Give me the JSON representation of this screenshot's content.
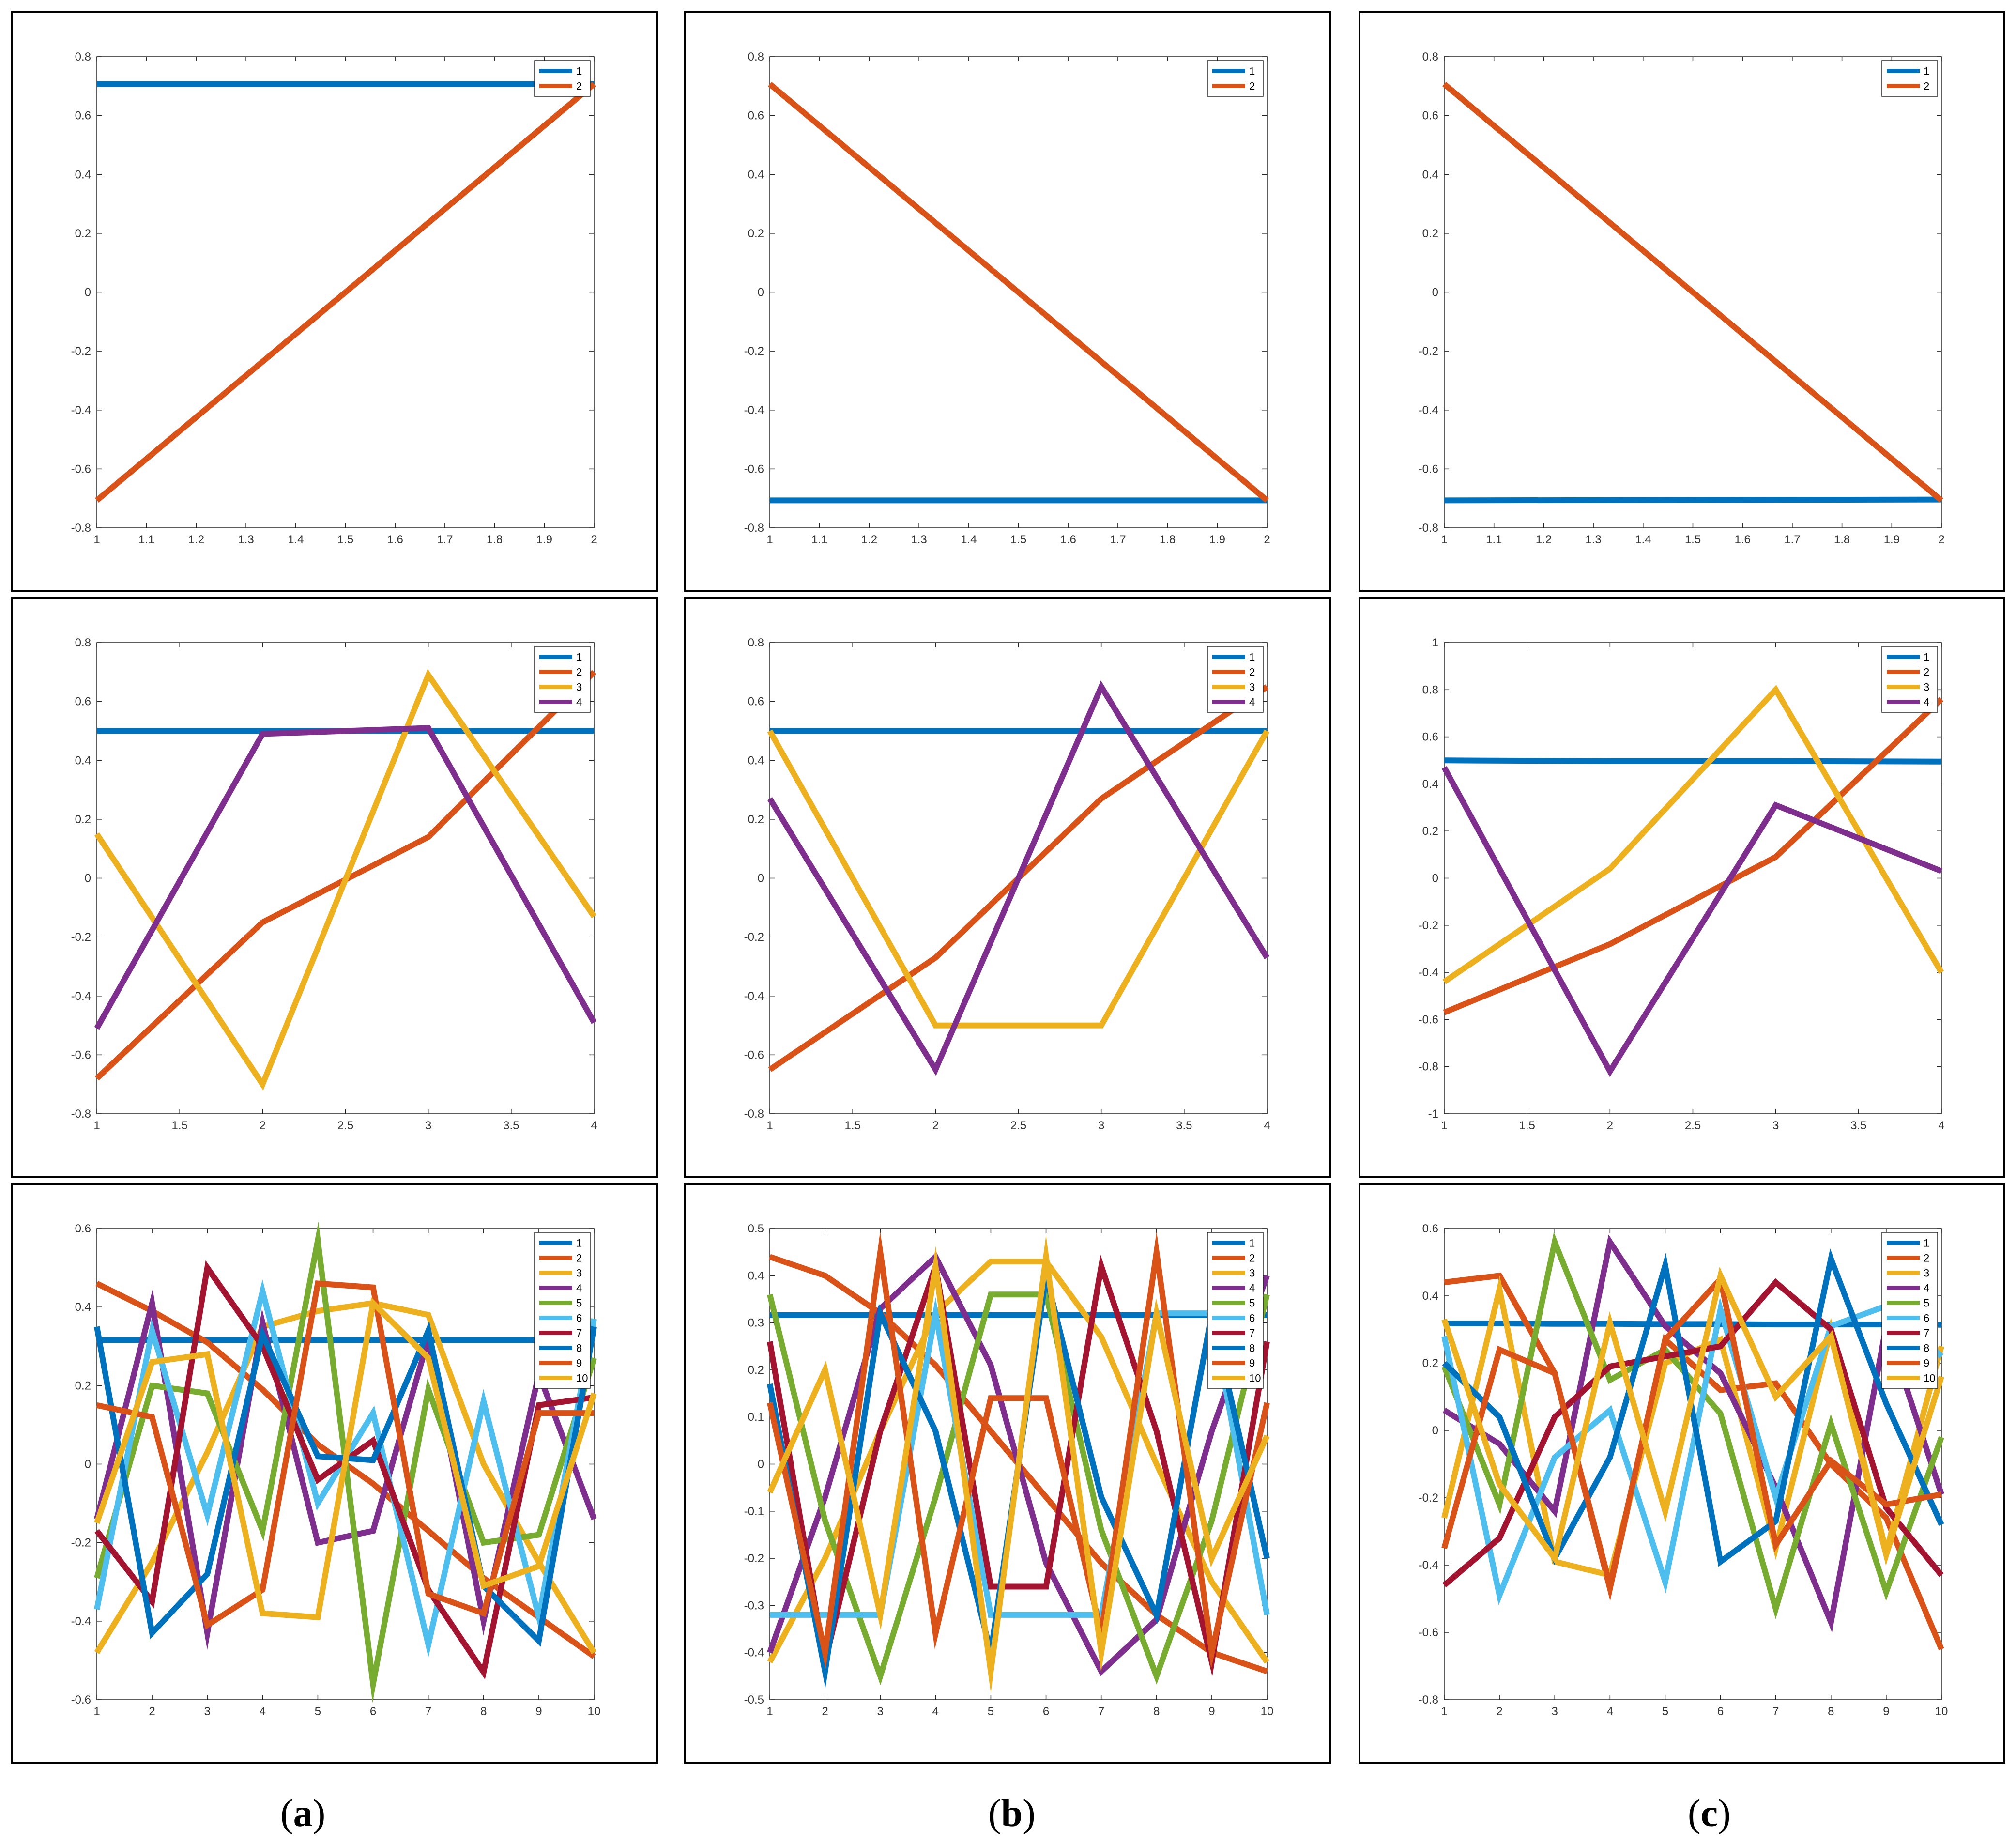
{
  "figure": {
    "columns": [
      {
        "label_open": "(",
        "label_letter": "a",
        "label_close": ")"
      },
      {
        "label_open": "(",
        "label_letter": "b",
        "label_close": ")"
      },
      {
        "label_open": "(",
        "label_letter": "c",
        "label_close": ")"
      }
    ],
    "series_colors": [
      "#0072BD",
      "#D95319",
      "#EDB120",
      "#7E2F8E",
      "#77AC30",
      "#4DBEEE",
      "#A2142F",
      "#0072BD",
      "#D95319",
      "#EDB120"
    ]
  },
  "chart_data": [
    {
      "id": "a1",
      "type": "line",
      "title": "",
      "xlabel": "",
      "ylabel": "",
      "x": [
        1,
        2
      ],
      "xlim": [
        1,
        2
      ],
      "ylim": [
        -0.8,
        0.8
      ],
      "xticks": [
        1,
        1.1,
        1.2,
        1.3,
        1.4,
        1.5,
        1.6,
        1.7,
        1.8,
        1.9,
        2
      ],
      "xtick_labels": [
        "1",
        "1.1",
        "1.2",
        "1.3",
        "1.4",
        "1.5",
        "1.6",
        "1.7",
        "1.8",
        "1.9",
        "2"
      ],
      "yticks": [
        -0.8,
        -0.6,
        -0.4,
        -0.2,
        0,
        0.2,
        0.4,
        0.6,
        0.8
      ],
      "ytick_labels": [
        "-0.8",
        "-0.6",
        "-0.4",
        "-0.2",
        "0",
        "0.2",
        "0.4",
        "0.6",
        "0.8"
      ],
      "legend": "top-right",
      "series": [
        {
          "name": "1",
          "values": [
            0.707,
            0.707
          ]
        },
        {
          "name": "2",
          "values": [
            -0.707,
            0.707
          ]
        }
      ]
    },
    {
      "id": "b1",
      "type": "line",
      "title": "",
      "xlabel": "",
      "ylabel": "",
      "x": [
        1,
        2
      ],
      "xlim": [
        1,
        2
      ],
      "ylim": [
        -0.8,
        0.8
      ],
      "xticks": [
        1,
        1.1,
        1.2,
        1.3,
        1.4,
        1.5,
        1.6,
        1.7,
        1.8,
        1.9,
        2
      ],
      "xtick_labels": [
        "1",
        "1.1",
        "1.2",
        "1.3",
        "1.4",
        "1.5",
        "1.6",
        "1.7",
        "1.8",
        "1.9",
        "2"
      ],
      "yticks": [
        -0.8,
        -0.6,
        -0.4,
        -0.2,
        0,
        0.2,
        0.4,
        0.6,
        0.8
      ],
      "ytick_labels": [
        "-0.8",
        "-0.6",
        "-0.4",
        "-0.2",
        "0",
        "0.2",
        "0.4",
        "0.6",
        "0.8"
      ],
      "legend": "top-right",
      "series": [
        {
          "name": "1",
          "values": [
            -0.707,
            -0.707
          ]
        },
        {
          "name": "2",
          "values": [
            0.707,
            -0.707
          ]
        }
      ]
    },
    {
      "id": "c1",
      "type": "line",
      "title": "",
      "xlabel": "",
      "ylabel": "",
      "x": [
        1,
        2
      ],
      "xlim": [
        1,
        2
      ],
      "ylim": [
        -0.8,
        0.8
      ],
      "xticks": [
        1,
        1.1,
        1.2,
        1.3,
        1.4,
        1.5,
        1.6,
        1.7,
        1.8,
        1.9,
        2
      ],
      "xtick_labels": [
        "1",
        "1.1",
        "1.2",
        "1.3",
        "1.4",
        "1.5",
        "1.6",
        "1.7",
        "1.8",
        "1.9",
        "2"
      ],
      "yticks": [
        -0.8,
        -0.6,
        -0.4,
        -0.2,
        0,
        0.2,
        0.4,
        0.6,
        0.8
      ],
      "ytick_labels": [
        "-0.8",
        "-0.6",
        "-0.4",
        "-0.2",
        "0",
        "0.2",
        "0.4",
        "0.6",
        "0.8"
      ],
      "legend": "top-right",
      "series": [
        {
          "name": "1",
          "values": [
            -0.707,
            -0.704
          ]
        },
        {
          "name": "2",
          "values": [
            0.707,
            -0.707
          ]
        }
      ]
    },
    {
      "id": "a2",
      "type": "line",
      "title": "",
      "xlabel": "",
      "ylabel": "",
      "x": [
        1,
        2,
        3,
        4
      ],
      "xlim": [
        1,
        4
      ],
      "ylim": [
        -0.8,
        0.8
      ],
      "xticks": [
        1,
        1.5,
        2,
        2.5,
        3,
        3.5,
        4
      ],
      "xtick_labels": [
        "1",
        "1.5",
        "2",
        "2.5",
        "3",
        "3.5",
        "4"
      ],
      "yticks": [
        -0.8,
        -0.6,
        -0.4,
        -0.2,
        0,
        0.2,
        0.4,
        0.6,
        0.8
      ],
      "ytick_labels": [
        "-0.8",
        "-0.6",
        "-0.4",
        "-0.2",
        "0",
        "0.2",
        "0.4",
        "0.6",
        "0.8"
      ],
      "legend": "top-right",
      "series": [
        {
          "name": "1",
          "values": [
            0.5,
            0.5,
            0.5,
            0.5
          ]
        },
        {
          "name": "2",
          "values": [
            -0.68,
            -0.15,
            0.14,
            0.7
          ]
        },
        {
          "name": "3",
          "values": [
            0.15,
            -0.7,
            0.69,
            -0.13
          ]
        },
        {
          "name": "4",
          "values": [
            -0.51,
            0.49,
            0.51,
            -0.49
          ]
        }
      ]
    },
    {
      "id": "b2",
      "type": "line",
      "title": "",
      "xlabel": "",
      "ylabel": "",
      "x": [
        1,
        2,
        3,
        4
      ],
      "xlim": [
        1,
        4
      ],
      "ylim": [
        -0.8,
        0.8
      ],
      "xticks": [
        1,
        1.5,
        2,
        2.5,
        3,
        3.5,
        4
      ],
      "xtick_labels": [
        "1",
        "1.5",
        "2",
        "2.5",
        "3",
        "3.5",
        "4"
      ],
      "yticks": [
        -0.8,
        -0.6,
        -0.4,
        -0.2,
        0,
        0.2,
        0.4,
        0.6,
        0.8
      ],
      "ytick_labels": [
        "-0.8",
        "-0.6",
        "-0.4",
        "-0.2",
        "0",
        "0.2",
        "0.4",
        "0.6",
        "0.8"
      ],
      "legend": "top-right",
      "series": [
        {
          "name": "1",
          "values": [
            0.5,
            0.5,
            0.5,
            0.5
          ]
        },
        {
          "name": "2",
          "values": [
            -0.65,
            -0.27,
            0.27,
            0.65
          ]
        },
        {
          "name": "3",
          "values": [
            0.5,
            -0.5,
            -0.5,
            0.5
          ]
        },
        {
          "name": "4",
          "values": [
            0.27,
            -0.65,
            0.65,
            -0.27
          ]
        }
      ]
    },
    {
      "id": "c2",
      "type": "line",
      "title": "",
      "xlabel": "",
      "ylabel": "",
      "x": [
        1,
        2,
        3,
        4
      ],
      "xlim": [
        1,
        4
      ],
      "ylim": [
        -1,
        1
      ],
      "xticks": [
        1,
        1.5,
        2,
        2.5,
        3,
        3.5,
        4
      ],
      "xtick_labels": [
        "1",
        "1.5",
        "2",
        "2.5",
        "3",
        "3.5",
        "4"
      ],
      "yticks": [
        -1,
        -0.8,
        -0.6,
        -0.4,
        -0.2,
        0,
        0.2,
        0.4,
        0.6,
        0.8,
        1
      ],
      "ytick_labels": [
        "-1",
        "-0.8",
        "-0.6",
        "-0.4",
        "-0.2",
        "0",
        "0.2",
        "0.4",
        "0.6",
        "0.8",
        "1"
      ],
      "legend": "top-right",
      "series": [
        {
          "name": "1",
          "values": [
            0.5,
            0.497,
            0.497,
            0.495
          ]
        },
        {
          "name": "2",
          "values": [
            -0.57,
            -0.28,
            0.09,
            0.76
          ]
        },
        {
          "name": "3",
          "values": [
            -0.44,
            0.04,
            0.8,
            -0.4
          ]
        },
        {
          "name": "4",
          "values": [
            0.47,
            -0.82,
            0.31,
            0.03
          ]
        }
      ]
    },
    {
      "id": "a3",
      "type": "line",
      "title": "",
      "xlabel": "",
      "ylabel": "",
      "x": [
        1,
        2,
        3,
        4,
        5,
        6,
        7,
        8,
        9,
        10
      ],
      "xlim": [
        1,
        10
      ],
      "ylim": [
        -0.6,
        0.6
      ],
      "xticks": [
        1,
        2,
        3,
        4,
        5,
        6,
        7,
        8,
        9,
        10
      ],
      "xtick_labels": [
        "1",
        "2",
        "3",
        "4",
        "5",
        "6",
        "7",
        "8",
        "9",
        "10"
      ],
      "yticks": [
        -0.6,
        -0.4,
        -0.2,
        0,
        0.2,
        0.4,
        0.6
      ],
      "ytick_labels": [
        "-0.6",
        "-0.4",
        "-0.2",
        "0",
        "0.2",
        "0.4",
        "0.6"
      ],
      "legend": "top-right",
      "series": [
        {
          "name": "1",
          "values": [
            0.316,
            0.316,
            0.316,
            0.316,
            0.316,
            0.316,
            0.316,
            0.316,
            0.316,
            0.316
          ]
        },
        {
          "name": "2",
          "values": [
            0.46,
            0.39,
            0.31,
            0.19,
            0.05,
            -0.05,
            -0.17,
            -0.29,
            -0.39,
            -0.49
          ]
        },
        {
          "name": "3",
          "values": [
            -0.48,
            -0.25,
            0.03,
            0.35,
            0.39,
            0.41,
            0.38,
            0.0,
            -0.25,
            -0.48
          ]
        },
        {
          "name": "4",
          "values": [
            -0.14,
            0.41,
            -0.43,
            0.36,
            -0.2,
            -0.17,
            0.32,
            -0.4,
            0.23,
            -0.14
          ]
        },
        {
          "name": "5",
          "values": [
            -0.29,
            0.2,
            0.18,
            -0.17,
            0.57,
            -0.56,
            0.19,
            -0.2,
            -0.18,
            0.27
          ]
        },
        {
          "name": "6",
          "values": [
            -0.37,
            0.34,
            -0.13,
            0.44,
            -0.1,
            0.13,
            -0.46,
            0.16,
            -0.39,
            0.37
          ]
        },
        {
          "name": "7",
          "values": [
            -0.17,
            -0.35,
            0.5,
            0.3,
            -0.04,
            0.06,
            -0.32,
            -0.53,
            0.15,
            0.17
          ]
        },
        {
          "name": "8",
          "values": [
            0.35,
            -0.43,
            -0.28,
            0.33,
            0.02,
            0.01,
            0.34,
            -0.31,
            -0.45,
            0.35
          ]
        },
        {
          "name": "9",
          "values": [
            0.15,
            0.12,
            -0.41,
            -0.32,
            0.46,
            0.45,
            -0.33,
            -0.38,
            0.13,
            0.13
          ]
        },
        {
          "name": "10",
          "values": [
            -0.15,
            0.26,
            0.28,
            -0.38,
            -0.39,
            0.41,
            0.27,
            -0.31,
            -0.26,
            0.18
          ]
        }
      ]
    },
    {
      "id": "b3",
      "type": "line",
      "title": "",
      "xlabel": "",
      "ylabel": "",
      "x": [
        1,
        2,
        3,
        4,
        5,
        6,
        7,
        8,
        9,
        10
      ],
      "xlim": [
        1,
        10
      ],
      "ylim": [
        -0.5,
        0.5
      ],
      "xticks": [
        1,
        2,
        3,
        4,
        5,
        6,
        7,
        8,
        9,
        10
      ],
      "xtick_labels": [
        "1",
        "2",
        "3",
        "4",
        "5",
        "6",
        "7",
        "8",
        "9",
        "10"
      ],
      "yticks": [
        -0.5,
        -0.4,
        -0.3,
        -0.2,
        -0.1,
        0,
        0.1,
        0.2,
        0.3,
        0.4,
        0.5
      ],
      "ytick_labels": [
        "-0.5",
        "-0.4",
        "-0.3",
        "-0.2",
        "-0.1",
        "0",
        "0.1",
        "0.2",
        "0.3",
        "0.4",
        "0.5"
      ],
      "legend": "top-right",
      "series": [
        {
          "name": "1",
          "values": [
            0.316,
            0.316,
            0.316,
            0.316,
            0.316,
            0.316,
            0.316,
            0.316,
            0.316,
            0.316
          ]
        },
        {
          "name": "2",
          "values": [
            0.44,
            0.4,
            0.32,
            0.21,
            0.07,
            -0.07,
            -0.21,
            -0.32,
            -0.4,
            -0.44
          ]
        },
        {
          "name": "3",
          "values": [
            -0.42,
            -0.2,
            0.07,
            0.32,
            0.43,
            0.43,
            0.27,
            0.0,
            -0.25,
            -0.42
          ]
        },
        {
          "name": "4",
          "values": [
            -0.4,
            -0.07,
            0.33,
            0.44,
            0.21,
            -0.21,
            -0.44,
            -0.33,
            0.07,
            0.4
          ]
        },
        {
          "name": "5",
          "values": [
            0.36,
            -0.12,
            -0.45,
            -0.07,
            0.36,
            0.36,
            -0.14,
            -0.45,
            -0.12,
            0.36
          ]
        },
        {
          "name": "6",
          "values": [
            -0.32,
            -0.32,
            -0.32,
            0.32,
            -0.32,
            -0.32,
            -0.32,
            0.32,
            0.32,
            -0.32
          ]
        },
        {
          "name": "7",
          "values": [
            0.26,
            -0.42,
            0.07,
            0.42,
            -0.26,
            -0.26,
            0.42,
            0.07,
            -0.42,
            0.26
          ]
        },
        {
          "name": "8",
          "values": [
            0.17,
            -0.44,
            0.32,
            0.07,
            -0.4,
            0.4,
            -0.07,
            -0.32,
            0.32,
            -0.2
          ]
        },
        {
          "name": "9",
          "values": [
            0.13,
            -0.4,
            0.45,
            -0.36,
            0.14,
            0.14,
            -0.36,
            0.45,
            -0.4,
            0.13
          ]
        },
        {
          "name": "10",
          "values": [
            -0.06,
            0.2,
            -0.32,
            0.42,
            -0.44,
            0.44,
            -0.4,
            0.32,
            -0.2,
            0.06
          ]
        }
      ]
    },
    {
      "id": "c3",
      "type": "line",
      "title": "",
      "xlabel": "",
      "ylabel": "",
      "x": [
        1,
        2,
        3,
        4,
        5,
        6,
        7,
        8,
        9,
        10
      ],
      "xlim": [
        1,
        10
      ],
      "ylim": [
        -0.8,
        0.6
      ],
      "xticks": [
        1,
        2,
        3,
        4,
        5,
        6,
        7,
        8,
        9,
        10
      ],
      "xtick_labels": [
        "1",
        "2",
        "3",
        "4",
        "5",
        "6",
        "7",
        "8",
        "9",
        "10"
      ],
      "yticks": [
        -0.8,
        -0.6,
        -0.4,
        -0.2,
        0,
        0.2,
        0.4,
        0.6
      ],
      "ytick_labels": [
        "-0.8",
        "-0.6",
        "-0.4",
        "-0.2",
        "0",
        "0.2",
        "0.4",
        "0.6"
      ],
      "legend": "top-right",
      "series": [
        {
          "name": "1",
          "values": [
            0.318,
            0.318,
            0.317,
            0.317,
            0.316,
            0.316,
            0.315,
            0.315,
            0.315,
            0.314
          ]
        },
        {
          "name": "2",
          "values": [
            0.44,
            0.46,
            0.17,
            -0.47,
            0.27,
            0.12,
            0.14,
            -0.1,
            -0.26,
            -0.65
          ]
        },
        {
          "name": "3",
          "values": [
            -0.26,
            0.42,
            -0.39,
            -0.43,
            0.2,
            0.27,
            -0.35,
            0.3,
            -0.36,
            0.25
          ]
        },
        {
          "name": "4",
          "values": [
            0.06,
            -0.04,
            -0.24,
            0.56,
            0.31,
            0.17,
            -0.17,
            -0.57,
            0.31,
            -0.19
          ]
        },
        {
          "name": "5",
          "values": [
            0.19,
            -0.22,
            0.56,
            0.15,
            0.24,
            0.05,
            -0.53,
            0.02,
            -0.48,
            -0.02
          ]
        },
        {
          "name": "6",
          "values": [
            0.28,
            -0.49,
            -0.08,
            0.06,
            -0.45,
            0.36,
            -0.2,
            0.31,
            0.37,
            0.22
          ]
        },
        {
          "name": "7",
          "values": [
            -0.46,
            -0.32,
            0.04,
            0.19,
            0.22,
            0.25,
            0.44,
            0.3,
            -0.23,
            -0.43
          ]
        },
        {
          "name": "8",
          "values": [
            0.2,
            0.04,
            -0.38,
            -0.08,
            0.49,
            -0.39,
            -0.27,
            0.51,
            0.08,
            -0.28
          ]
        },
        {
          "name": "9",
          "values": [
            -0.35,
            0.24,
            0.17,
            -0.46,
            0.27,
            0.45,
            -0.34,
            -0.09,
            -0.22,
            -0.19
          ]
        },
        {
          "name": "10",
          "values": [
            0.33,
            -0.16,
            -0.38,
            0.32,
            -0.24,
            0.46,
            0.1,
            0.28,
            -0.37,
            0.16
          ]
        }
      ]
    }
  ]
}
